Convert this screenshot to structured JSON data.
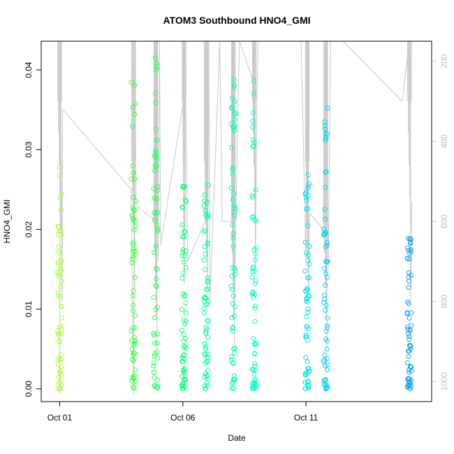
{
  "chart_data": {
    "type": "scatter",
    "title": "ATOM3 Southbound HNO4_GMI",
    "xlabel": "Date",
    "ylabel": "HNO4_GMI",
    "x_ticks": [
      {
        "value": 1,
        "label": "Oct 01"
      },
      {
        "value": 6,
        "label": "Oct 06"
      },
      {
        "value": 11,
        "label": "Oct 11"
      }
    ],
    "y_ticks": [
      {
        "value": 0.0,
        "label": "0.00"
      },
      {
        "value": 0.01,
        "label": "0.01"
      },
      {
        "value": 0.02,
        "label": "0.02"
      },
      {
        "value": 0.03,
        "label": "0.03"
      },
      {
        "value": 0.04,
        "label": "0.04"
      }
    ],
    "y2_ticks": [
      {
        "value": 200,
        "label": "200"
      },
      {
        "value": 400,
        "label": "400"
      },
      {
        "value": 600,
        "label": "600"
      },
      {
        "value": 800,
        "label": "800"
      },
      {
        "value": 1000,
        "label": "1000"
      }
    ],
    "xlim": [
      0.25,
      16.1
    ],
    "ylim": [
      -0.0016,
      0.0436
    ],
    "y2lim": [
      1050,
      150
    ],
    "y2_reversed": true,
    "grid": false,
    "colors": {
      "pressure_line": "#c8c8c8",
      "axis": "#000000",
      "right_axis": "#bdbdbd",
      "point_gradient": [
        "#a8ff3a",
        "#32ff3a",
        "#00ff90",
        "#00ffd8",
        "#00c8ff",
        "#1aa0f0"
      ]
    },
    "flights": [
      {
        "day": 1.0,
        "ymin": 0.0,
        "ymax": 0.028
      },
      {
        "day": 4.0,
        "ymin": 0.0,
        "ymax": 0.04
      },
      {
        "day": 4.9,
        "ymin": 0.0,
        "ymax": 0.042
      },
      {
        "day": 6.05,
        "ymin": 0.0,
        "ymax": 0.027
      },
      {
        "day": 6.95,
        "ymin": 0.0,
        "ymax": 0.026
      },
      {
        "day": 8.05,
        "ymin": 0.0,
        "ymax": 0.04
      },
      {
        "day": 8.9,
        "ymin": 0.0,
        "ymax": 0.04
      },
      {
        "day": 11.05,
        "ymin": 0.0,
        "ymax": 0.027
      },
      {
        "day": 11.8,
        "ymin": 0.0,
        "ymax": 0.037
      },
      {
        "day": 15.2,
        "ymin": 0.0,
        "ymax": 0.02
      }
    ],
    "pressure_profile": [
      [
        1.0,
        1030
      ],
      [
        1.02,
        200
      ],
      [
        1.05,
        320
      ],
      [
        1.1,
        800
      ],
      [
        1.12,
        320
      ],
      [
        3.9,
        520
      ],
      [
        4.0,
        1030
      ],
      [
        4.05,
        150
      ],
      [
        4.1,
        560
      ],
      [
        4.9,
        600
      ],
      [
        4.95,
        150
      ],
      [
        5.0,
        700
      ],
      [
        5.05,
        150
      ],
      [
        5.1,
        660
      ],
      [
        6.0,
        310
      ],
      [
        6.05,
        760
      ],
      [
        6.08,
        150
      ],
      [
        6.15,
        460
      ],
      [
        6.2,
        700
      ],
      [
        6.9,
        600
      ],
      [
        6.95,
        150
      ],
      [
        7.0,
        760
      ],
      [
        7.05,
        150
      ],
      [
        7.1,
        800
      ],
      [
        7.5,
        150
      ],
      [
        7.6,
        600
      ],
      [
        8.0,
        600
      ],
      [
        8.05,
        150
      ],
      [
        8.1,
        820
      ],
      [
        8.2,
        420
      ],
      [
        8.3,
        150
      ],
      [
        8.85,
        250
      ],
      [
        8.9,
        150
      ],
      [
        8.95,
        720
      ],
      [
        9.0,
        320
      ],
      [
        9.05,
        150
      ],
      [
        9.5,
        150
      ],
      [
        10.8,
        150
      ],
      [
        11.0,
        700
      ],
      [
        11.05,
        150
      ],
      [
        11.1,
        800
      ],
      [
        11.15,
        580
      ],
      [
        11.7,
        620
      ],
      [
        11.8,
        150
      ],
      [
        11.9,
        720
      ],
      [
        12.0,
        150
      ],
      [
        12.5,
        150
      ],
      [
        14.9,
        300
      ],
      [
        15.2,
        150
      ],
      [
        15.25,
        800
      ],
      [
        15.3,
        550
      ]
    ]
  }
}
